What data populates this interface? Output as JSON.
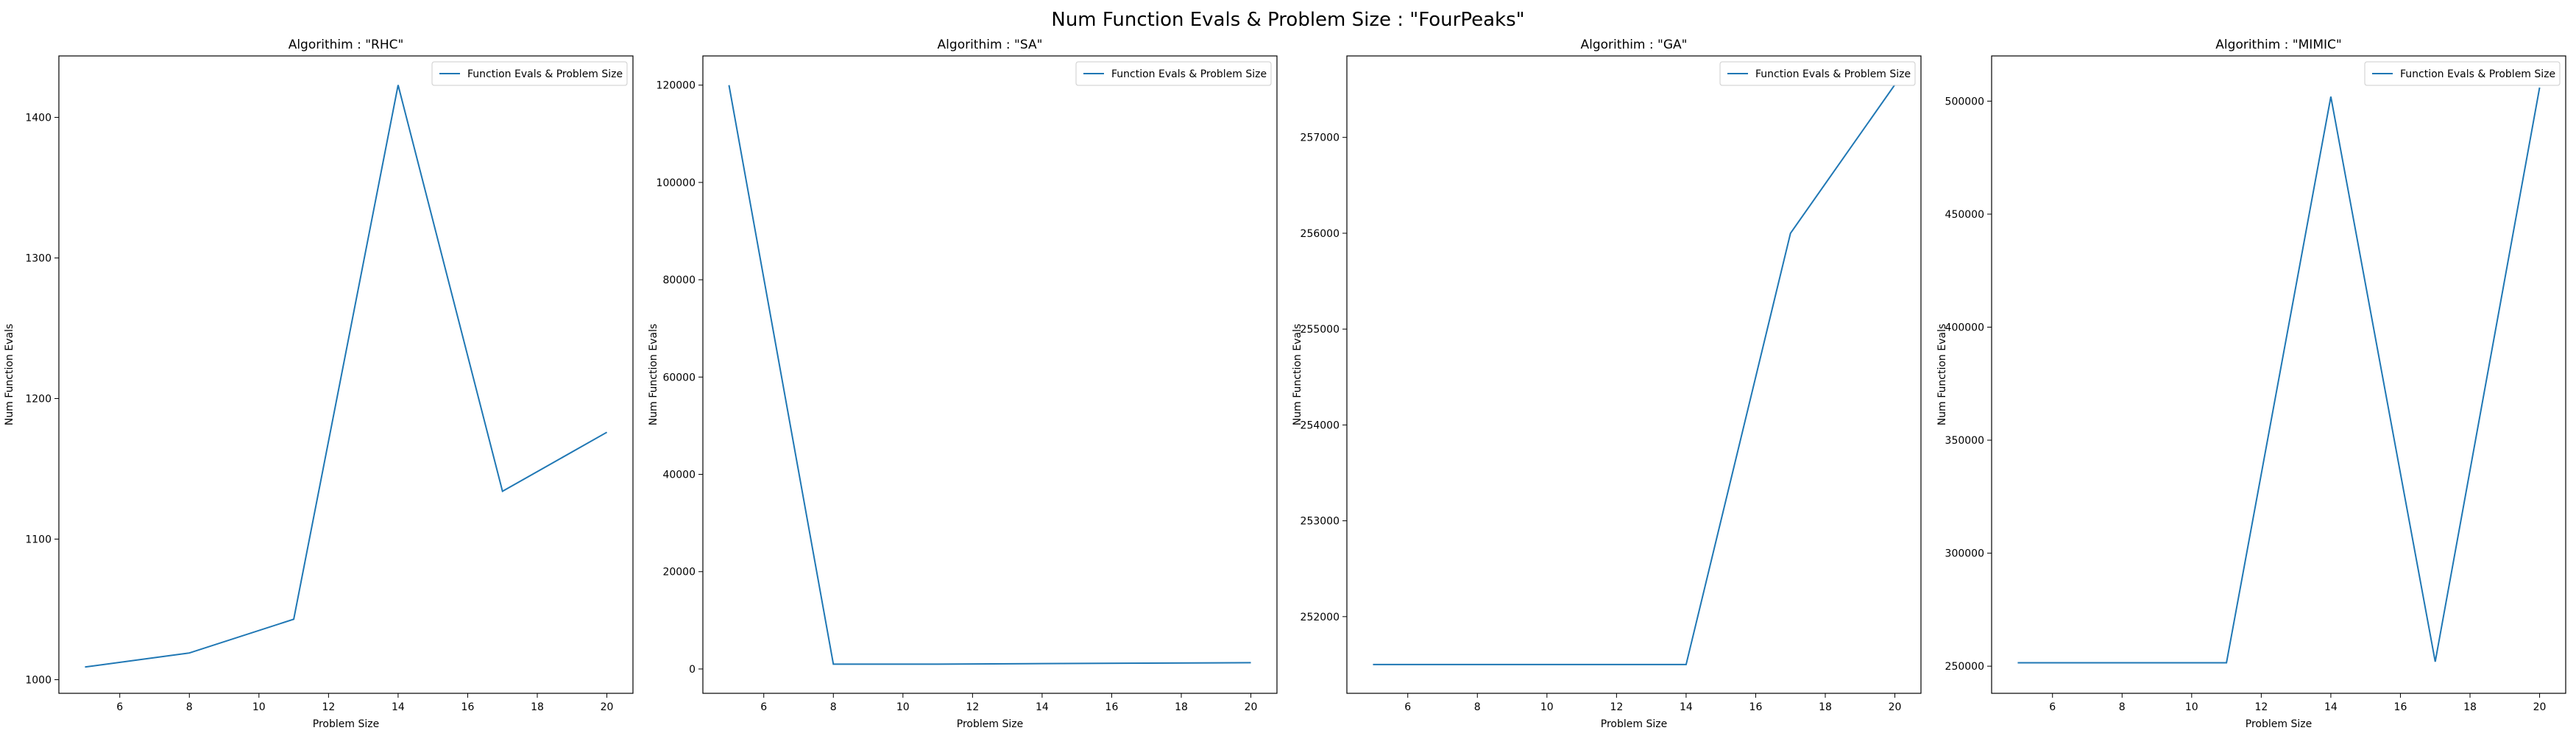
{
  "figure": {
    "title": "Num Function Evals & Problem Size : \"FourPeaks\""
  },
  "colors": {
    "series": "#1f77b4",
    "axes": "#000000",
    "legend_border": "#cccccc"
  },
  "chart_data": [
    {
      "type": "line",
      "title": "Algorithim : \"RHC\"",
      "xlabel": "Problem Size",
      "ylabel": "Num Function Evals",
      "xlim": [
        4.25,
        20.75
      ],
      "ylim": [
        990.3,
        1443.7
      ],
      "xticks": [
        6,
        8,
        10,
        12,
        14,
        16,
        18,
        20
      ],
      "yticks": [
        1000,
        1100,
        1200,
        1300,
        1400
      ],
      "grid": false,
      "legend_position": "top-right",
      "series": [
        {
          "name": "Function Evals & Problem Size",
          "x": [
            5,
            8,
            11,
            14,
            17,
            20
          ],
          "y": [
            1009,
            1019,
            1043,
            1423,
            1134,
            1176
          ]
        }
      ]
    },
    {
      "type": "line",
      "title": "Algorithim : \"SA\"",
      "xlabel": "Problem Size",
      "ylabel": "Num Function Evals",
      "xlim": [
        4.25,
        20.75
      ],
      "ylim": [
        -5000,
        126000
      ],
      "xticks": [
        6,
        8,
        10,
        12,
        14,
        16,
        18,
        20
      ],
      "yticks": [
        0,
        20000,
        40000,
        60000,
        80000,
        100000,
        120000
      ],
      "grid": false,
      "legend_position": "top-right",
      "series": [
        {
          "name": "Function Evals & Problem Size",
          "x": [
            5,
            8,
            11,
            14,
            17,
            20
          ],
          "y": [
            120000,
            1000,
            1000,
            1100,
            1200,
            1300
          ]
        }
      ]
    },
    {
      "type": "line",
      "title": "Algorithim : \"GA\"",
      "xlabel": "Problem Size",
      "ylabel": "Num Function Evals",
      "xlim": [
        4.25,
        20.75
      ],
      "ylim": [
        251200,
        257850
      ],
      "xticks": [
        6,
        8,
        10,
        12,
        14,
        16,
        18,
        20
      ],
      "yticks": [
        252000,
        253000,
        254000,
        255000,
        256000,
        257000
      ],
      "grid": false,
      "legend_position": "top-right",
      "series": [
        {
          "name": "Function Evals & Problem Size",
          "x": [
            5,
            8,
            11,
            14,
            17,
            20
          ],
          "y": [
            251500,
            251500,
            251500,
            251500,
            256000,
            257550
          ]
        }
      ]
    },
    {
      "type": "line",
      "title": "Algorithim : \"MIMIC\"",
      "xlabel": "Problem Size",
      "ylabel": "Num Function Evals",
      "xlim": [
        4.25,
        20.75
      ],
      "ylim": [
        238000,
        520000
      ],
      "xticks": [
        6,
        8,
        10,
        12,
        14,
        16,
        18,
        20
      ],
      "yticks": [
        250000,
        300000,
        350000,
        400000,
        450000,
        500000
      ],
      "grid": false,
      "legend_position": "top-right",
      "series": [
        {
          "name": "Function Evals & Problem Size",
          "x": [
            5,
            8,
            11,
            14,
            17,
            20
          ],
          "y": [
            251500,
            251500,
            251500,
            502000,
            252000,
            506000
          ]
        }
      ]
    }
  ]
}
